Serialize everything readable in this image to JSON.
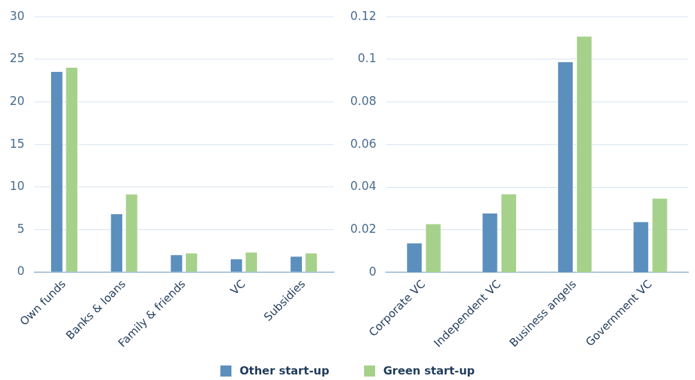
{
  "chart_data": [
    {
      "type": "bar",
      "categories": [
        "Own funds",
        "Banks & loans",
        "Family & friends",
        "VC",
        "Subsidies"
      ],
      "series": [
        {
          "name": "Other start-up",
          "color": "#5b8fbe",
          "values": [
            23.6,
            6.9,
            2.1,
            1.6,
            1.9
          ]
        },
        {
          "name": "Green start-up",
          "color": "#a6d18a",
          "values": [
            24.1,
            9.2,
            2.3,
            2.4,
            2.3
          ]
        }
      ],
      "ylim": [
        0,
        30
      ],
      "yticks": [
        0,
        5,
        10,
        15,
        20,
        25,
        30
      ],
      "grid": "y",
      "legend": "bottom"
    },
    {
      "type": "bar",
      "categories": [
        "Corporate VC",
        "Independent VC",
        "Business angels",
        "Government VC"
      ],
      "series": [
        {
          "color": "#5b8fbe",
          "values": [
            0.014,
            0.028,
            0.099,
            0.024
          ]
        },
        {
          "color": "#a6d18a",
          "values": [
            0.023,
            0.037,
            0.111,
            0.035
          ]
        }
      ],
      "ylim": [
        0,
        0.12
      ],
      "yticks": [
        0,
        0.02,
        0.04,
        0.06,
        0.08,
        0.1,
        0.12
      ],
      "grid": "y"
    }
  ]
}
